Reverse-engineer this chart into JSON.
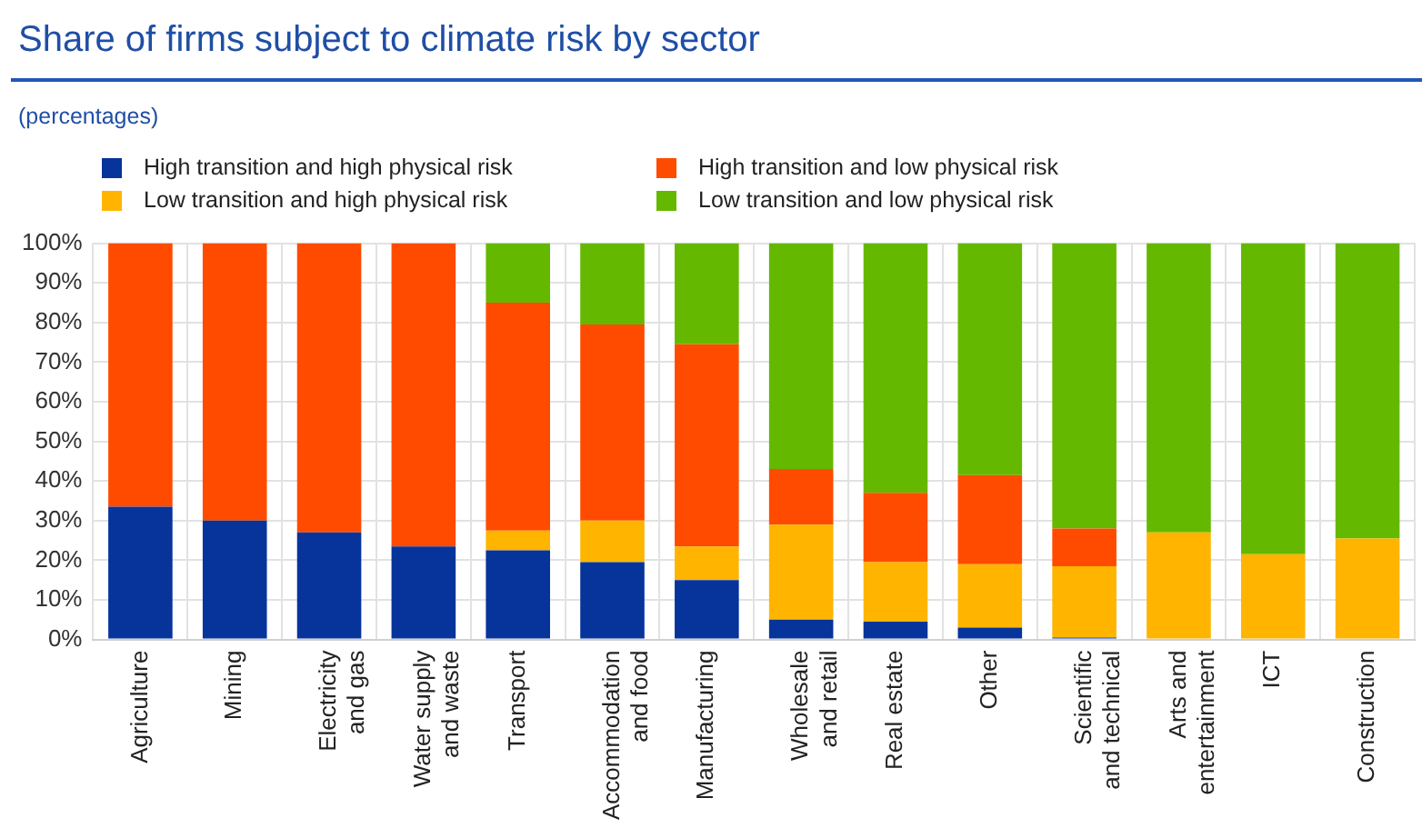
{
  "chart_data": {
    "type": "bar",
    "title": "Share of firms subject to climate risk by sector",
    "subtitle": "(percentages)",
    "categories": [
      "Agriculture",
      "Mining",
      "Electricity and gas",
      "Water supply and waste",
      "Transport",
      "Accommodation and food",
      "Manufacturing",
      "Wholesale and retail",
      "Real estate",
      "Other",
      "Scientific and technical",
      "Arts and entertainment",
      "ICT",
      "Construction"
    ],
    "series": [
      {
        "name": "High transition and high physical risk",
        "color": "#06349a",
        "values": [
          33.5,
          30,
          27,
          23.5,
          22.5,
          19.5,
          15,
          5,
          4.5,
          3,
          0.5,
          0,
          0,
          0
        ]
      },
      {
        "name": "Low transition and high physical risk",
        "color": "#ffb400",
        "values": [
          0,
          0,
          0,
          0,
          5,
          10.5,
          8.5,
          24,
          15,
          16,
          18,
          27,
          21.5,
          25.5
        ]
      },
      {
        "name": "High transition and low physical risk",
        "color": "#ff4b00",
        "values": [
          66.5,
          70,
          73,
          76.5,
          57.5,
          49.5,
          51,
          14,
          17.5,
          22.5,
          9.5,
          0,
          0,
          0
        ]
      },
      {
        "name": "Low transition and low physical risk",
        "color": "#65b800",
        "values": [
          0,
          0,
          0,
          0,
          15,
          20.5,
          25.5,
          57,
          63,
          58.5,
          72,
          73,
          78.5,
          74.5
        ]
      }
    ],
    "stacked": true,
    "ylim": [
      0,
      100
    ],
    "yticks": [
      {
        "value": 0,
        "label": "0%"
      },
      {
        "value": 10,
        "label": "10%"
      },
      {
        "value": 20,
        "label": "20%"
      },
      {
        "value": 30,
        "label": "30%"
      },
      {
        "value": 40,
        "label": "40%"
      },
      {
        "value": 50,
        "label": "50%"
      },
      {
        "value": 60,
        "label": "60%"
      },
      {
        "value": 70,
        "label": "70%"
      },
      {
        "value": 80,
        "label": "80%"
      },
      {
        "value": 90,
        "label": "90%"
      },
      {
        "value": 100,
        "label": "100%"
      }
    ],
    "grid": true,
    "legend": "top"
  }
}
